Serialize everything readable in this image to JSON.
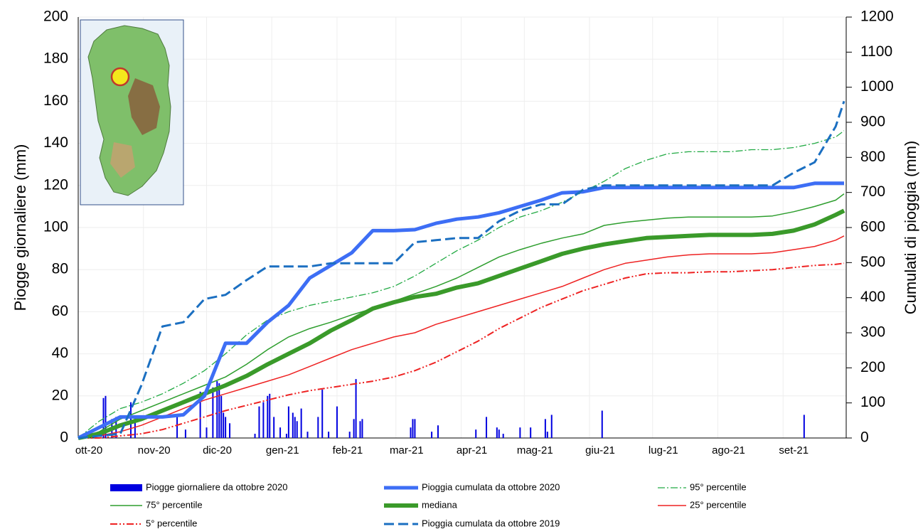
{
  "chart_data": {
    "type": "line",
    "xlim": [
      0,
      365
    ],
    "xticks": [
      {
        "value": 0,
        "label": "ott-20"
      },
      {
        "value": 31,
        "label": "nov-20"
      },
      {
        "value": 61,
        "label": "dic-20"
      },
      {
        "value": 92,
        "label": "gen-21"
      },
      {
        "value": 123,
        "label": "feb-21"
      },
      {
        "value": 151,
        "label": "mar-21"
      },
      {
        "value": 182,
        "label": "apr-21"
      },
      {
        "value": 212,
        "label": "mag-21"
      },
      {
        "value": 243,
        "label": "giu-21"
      },
      {
        "value": 273,
        "label": "lug-21"
      },
      {
        "value": 304,
        "label": "ago-21"
      },
      {
        "value": 335,
        "label": "set-21"
      }
    ],
    "ylabel": "Piogge giornaliere (mm)",
    "ylim": [
      0,
      200
    ],
    "yticks": [
      0,
      20,
      40,
      60,
      80,
      100,
      120,
      140,
      160,
      180,
      200
    ],
    "y2label": "Cumulati di pioggia (mm)",
    "y2lim": [
      0,
      1200
    ],
    "y2ticks": [
      0,
      100,
      200,
      300,
      400,
      500,
      600,
      700,
      800,
      900,
      1000,
      1100,
      1200
    ],
    "grid": true,
    "x": [
      0,
      10,
      20,
      30,
      40,
      50,
      60,
      70,
      80,
      90,
      100,
      110,
      120,
      130,
      140,
      150,
      160,
      170,
      180,
      190,
      200,
      210,
      220,
      230,
      240,
      250,
      260,
      270,
      280,
      290,
      300,
      310,
      320,
      330,
      340,
      350,
      360,
      364
    ],
    "series": [
      {
        "name": "Piogge giornaliere da ottobre 2020",
        "type": "bar",
        "color": "#0000e0",
        "axis": "y",
        "x": [
          12,
          13,
          16,
          18,
          25,
          27,
          47,
          51,
          58,
          61,
          64,
          66,
          67,
          68,
          69,
          70,
          72,
          84,
          86,
          88,
          90,
          91,
          93,
          96,
          99,
          100,
          102,
          103,
          104,
          106,
          109,
          114,
          116,
          119,
          123,
          129,
          131,
          132,
          134,
          135,
          158,
          159,
          160,
          168,
          171,
          189,
          194,
          199,
          200,
          202,
          210,
          215,
          222,
          223,
          225,
          249,
          345
        ],
        "values": [
          19,
          20,
          9,
          10,
          17,
          10,
          11,
          4,
          22,
          5,
          24,
          27,
          26,
          20,
          12,
          10,
          7,
          2,
          15,
          17,
          20,
          21,
          10,
          5,
          2,
          15,
          12,
          10,
          8,
          14,
          3,
          10,
          23,
          3,
          15,
          3,
          9,
          28,
          8,
          9,
          5,
          9,
          9,
          3,
          6,
          4,
          10,
          5,
          4,
          2,
          5,
          5,
          9,
          3,
          11,
          13,
          11
        ]
      },
      {
        "name": "Pioggia cumulata da ottobre 2020",
        "type": "line",
        "color": "#3d6ef5",
        "width": 5,
        "style": "solid",
        "axis": "y2",
        "values": [
          0,
          30,
          60,
          60,
          60,
          66,
          120,
          270,
          270,
          330,
          378,
          456,
          492,
          528,
          591,
          591,
          594,
          612,
          624,
          630,
          642,
          660,
          678,
          699,
          702,
          714,
          714,
          714,
          714,
          714,
          714,
          714,
          714,
          714,
          714,
          726,
          726,
          726
        ]
      },
      {
        "name": "95° percentile",
        "type": "line",
        "color": "#22aa44",
        "width": 1.3,
        "style": "dash-dot",
        "axis": "y2",
        "values": [
          0,
          48,
          84,
          102,
          126,
          156,
          192,
          240,
          294,
          336,
          360,
          378,
          390,
          402,
          414,
          432,
          462,
          498,
          534,
          564,
          600,
          630,
          648,
          672,
          702,
          732,
          768,
          792,
          810,
          816,
          816,
          816,
          822,
          822,
          828,
          840,
          858,
          876
        ]
      },
      {
        "name": "75° percentile",
        "type": "line",
        "color": "#2e9e2e",
        "width": 1.5,
        "style": "solid",
        "axis": "y2",
        "values": [
          0,
          18,
          54,
          78,
          102,
          126,
          150,
          174,
          210,
          252,
          288,
          312,
          330,
          351,
          369,
          390,
          411,
          432,
          456,
          486,
          516,
          537,
          555,
          570,
          582,
          606,
          615,
          621,
          627,
          630,
          630,
          630,
          630,
          633,
          645,
          660,
          678,
          696
        ]
      },
      {
        "name": "mediana",
        "type": "line",
        "color": "#3a9a2a",
        "width": 6,
        "style": "solid",
        "axis": "y2",
        "values": [
          0,
          12,
          36,
          54,
          78,
          102,
          126,
          150,
          177,
          210,
          240,
          270,
          306,
          336,
          369,
          387,
          402,
          411,
          429,
          441,
          462,
          483,
          504,
          525,
          540,
          552,
          561,
          570,
          573,
          576,
          579,
          579,
          579,
          582,
          591,
          609,
          636,
          648
        ]
      },
      {
        "name": "25° percentile",
        "type": "line",
        "color": "#ee2222",
        "width": 1.5,
        "style": "solid",
        "axis": "y2",
        "values": [
          0,
          6,
          18,
          36,
          60,
          84,
          108,
          126,
          144,
          162,
          180,
          204,
          228,
          252,
          270,
          288,
          300,
          324,
          342,
          360,
          378,
          396,
          414,
          432,
          456,
          480,
          498,
          507,
          516,
          522,
          525,
          525,
          525,
          528,
          537,
          546,
          564,
          576
        ]
      },
      {
        "name": "5° percentile",
        "type": "line",
        "color": "#ee2222",
        "width": 2,
        "style": "dash-dot-dot",
        "axis": "y2",
        "values": [
          0,
          0,
          6,
          12,
          24,
          42,
          60,
          78,
          93,
          108,
          123,
          135,
          144,
          153,
          162,
          174,
          192,
          216,
          246,
          276,
          312,
          342,
          372,
          396,
          420,
          438,
          456,
          468,
          471,
          471,
          474,
          474,
          477,
          480,
          486,
          492,
          495,
          498
        ]
      },
      {
        "name": "Pioggia cumulata da ottobre 2019",
        "type": "line",
        "color": "#1b6fc1",
        "width": 3,
        "style": "dashed",
        "axis": "y2",
        "values": [
          0,
          6,
          12,
          150,
          318,
          330,
          396,
          408,
          450,
          489,
          489,
          489,
          498,
          498,
          498,
          498,
          558,
          564,
          570,
          570,
          618,
          648,
          666,
          666,
          708,
          720,
          720,
          720,
          720,
          720,
          720,
          720,
          720,
          720,
          756,
          786,
          888,
          960
        ]
      }
    ]
  }
}
